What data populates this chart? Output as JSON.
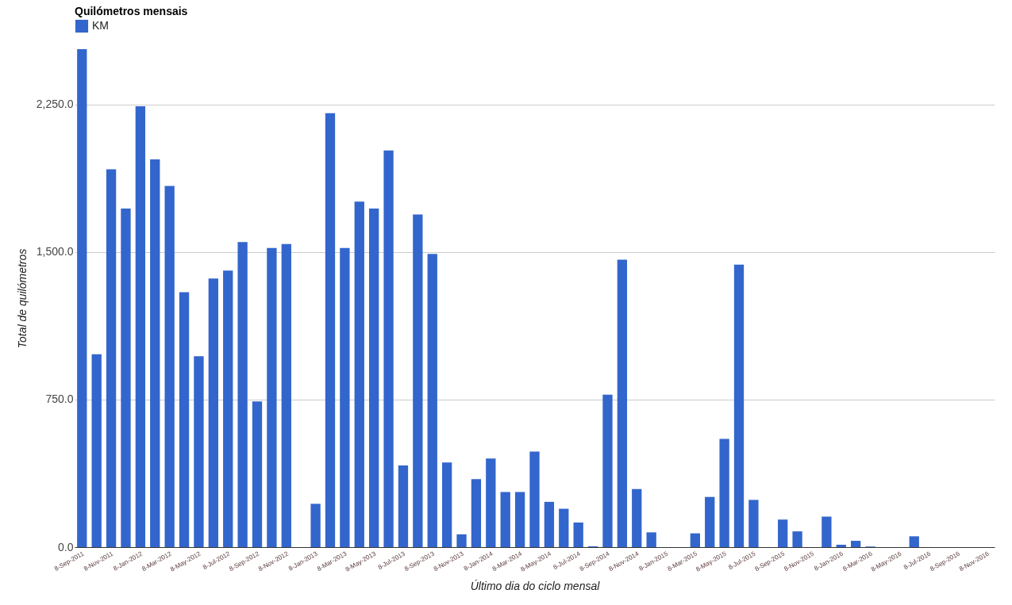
{
  "chart_data": {
    "type": "bar",
    "title": "Quilómetros mensais",
    "xlabel": "Último dia do ciclo mensal",
    "ylabel": "Total de quilómetros",
    "categories": [
      "8-Sep-2011",
      null,
      "8-Nov-2011",
      null,
      "8-Jan-2012",
      null,
      "8-Mar-2012",
      null,
      "8-May-2012",
      null,
      "8-Jul-2012",
      null,
      "8-Sep-2012",
      null,
      "8-Nov-2012",
      null,
      "8-Jan-2013",
      null,
      "8-Mar-2013",
      null,
      "8-May-2013",
      null,
      "8-Jul-2013",
      null,
      "8-Sep-2013",
      null,
      "8-Nov-2013",
      null,
      "8-Jan-2014",
      null,
      "8-Mar-2014",
      null,
      "8-May-2014",
      null,
      "8-Jul-2014",
      null,
      "8-Sep-2014",
      null,
      "8-Nov-2014",
      null,
      "8-Jan-2015",
      null,
      "8-Mar-2015",
      null,
      "8-May-2015",
      null,
      "8-Jul-2015",
      null,
      "8-Sep-2015",
      null,
      "8-Nov-2015",
      null,
      "8-Jan-2016",
      null,
      "8-Mar-2016",
      null,
      "8-May-2016",
      null,
      "8-Jul-2016",
      null,
      "8-Sep-2016",
      null,
      "8-Nov-2016"
    ],
    "series": [
      {
        "name": "KM",
        "color": "#3366cc",
        "values": [
          2530,
          980,
          1920,
          1720,
          2240,
          1970,
          1835,
          1295,
          970,
          1365,
          1405,
          1550,
          740,
          1520,
          1540,
          0,
          220,
          2205,
          1520,
          1755,
          1720,
          2015,
          415,
          1690,
          1490,
          430,
          65,
          345,
          450,
          280,
          280,
          485,
          230,
          195,
          125,
          4,
          775,
          1460,
          295,
          75,
          0,
          0,
          70,
          255,
          550,
          1435,
          240,
          0,
          140,
          80,
          0,
          155,
          12,
          32,
          3,
          0,
          0,
          55,
          0,
          0,
          0,
          0,
          0
        ]
      }
    ],
    "ylim": [
      0,
      2530
    ],
    "yticks": [
      {
        "value": 0,
        "label": "0.0"
      },
      {
        "value": 750,
        "label": "750.0"
      },
      {
        "value": 1500,
        "label": "1,500.0"
      },
      {
        "value": 2250,
        "label": "2,250.0"
      }
    ],
    "grid": "y",
    "legend": "top left"
  }
}
